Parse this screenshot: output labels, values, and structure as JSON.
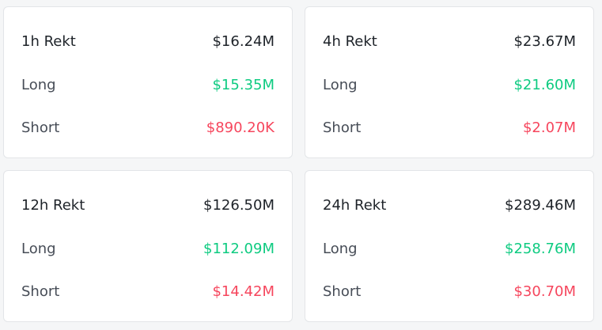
{
  "colors": {
    "long": "#0ecb81",
    "short": "#f6465d",
    "text": "#1e2329"
  },
  "cards": [
    {
      "title": "1h Rekt",
      "total": "$16.24M",
      "long_label": "Long",
      "long_value": "$15.35M",
      "short_label": "Short",
      "short_value": "$890.20K"
    },
    {
      "title": "4h Rekt",
      "total": "$23.67M",
      "long_label": "Long",
      "long_value": "$21.60M",
      "short_label": "Short",
      "short_value": "$2.07M"
    },
    {
      "title": "12h Rekt",
      "total": "$126.50M",
      "long_label": "Long",
      "long_value": "$112.09M",
      "short_label": "Short",
      "short_value": "$14.42M"
    },
    {
      "title": "24h Rekt",
      "total": "$289.46M",
      "long_label": "Long",
      "long_value": "$258.76M",
      "short_label": "Short",
      "short_value": "$30.70M"
    }
  ]
}
